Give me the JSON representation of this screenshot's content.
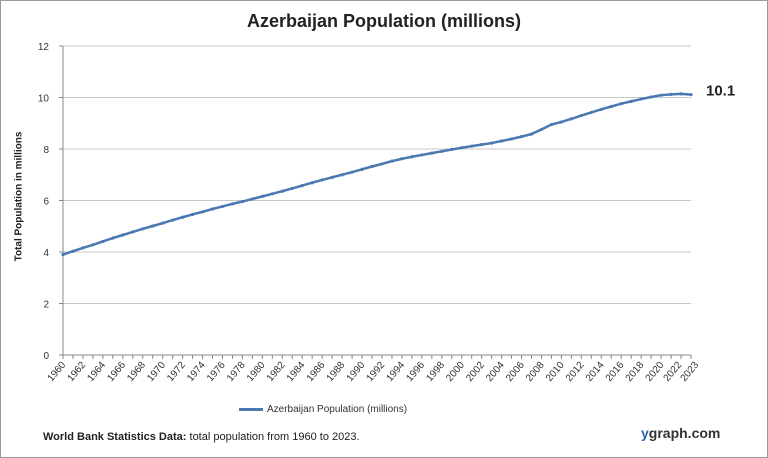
{
  "chart_data": {
    "type": "line",
    "title": "Azerbaijan Population (millions)",
    "ylabel": "Total Population  in millions",
    "xlabel": "",
    "ylim": [
      0,
      12
    ],
    "yticks": [
      0,
      2,
      4,
      6,
      8,
      10,
      12
    ],
    "xtick_labels": [
      "1960",
      "1962",
      "1964",
      "1966",
      "1968",
      "1970",
      "1972",
      "1974",
      "1976",
      "1978",
      "1980",
      "1982",
      "1984",
      "1986",
      "1988",
      "1990",
      "1992",
      "1994",
      "1996",
      "1998",
      "2000",
      "2002",
      "2004",
      "2006",
      "2008",
      "2010",
      "2012",
      "2014",
      "2016",
      "2018",
      "2020",
      "2022",
      "2023"
    ],
    "grid": "horizontal",
    "legend_position": "bottom",
    "color": "#4a78b0",
    "series": [
      {
        "name": "Azerbaijan Population (millions)",
        "x": [
          1960,
          1961,
          1962,
          1963,
          1964,
          1965,
          1966,
          1967,
          1968,
          1969,
          1970,
          1971,
          1972,
          1973,
          1974,
          1975,
          1976,
          1977,
          1978,
          1979,
          1980,
          1981,
          1982,
          1983,
          1984,
          1985,
          1986,
          1987,
          1988,
          1989,
          1990,
          1991,
          1992,
          1993,
          1994,
          1995,
          1996,
          1997,
          1998,
          1999,
          2000,
          2001,
          2002,
          2003,
          2004,
          2005,
          2006,
          2007,
          2008,
          2009,
          2010,
          2011,
          2012,
          2013,
          2014,
          2015,
          2016,
          2017,
          2018,
          2019,
          2020,
          2021,
          2022,
          2023
        ],
        "values": [
          3.9,
          4.03,
          4.16,
          4.28,
          4.41,
          4.54,
          4.66,
          4.78,
          4.9,
          5.01,
          5.12,
          5.24,
          5.35,
          5.46,
          5.56,
          5.67,
          5.77,
          5.87,
          5.96,
          6.06,
          6.16,
          6.26,
          6.36,
          6.47,
          6.58,
          6.69,
          6.8,
          6.9,
          7.0,
          7.1,
          7.21,
          7.32,
          7.42,
          7.53,
          7.62,
          7.7,
          7.77,
          7.84,
          7.91,
          7.98,
          8.05,
          8.11,
          8.17,
          8.23,
          8.31,
          8.39,
          8.48,
          8.58,
          8.76,
          8.95,
          9.05,
          9.17,
          9.3,
          9.42,
          9.54,
          9.65,
          9.76,
          9.85,
          9.94,
          10.02,
          10.09,
          10.12,
          10.14,
          10.11
        ]
      }
    ],
    "end_label": "10.1"
  },
  "footer": {
    "source_bold": "World Bank  Statistics  Data:",
    "source_text": " total population from 1960 to  2023."
  },
  "brand": {
    "y": "y",
    "rest": "graph.com"
  }
}
